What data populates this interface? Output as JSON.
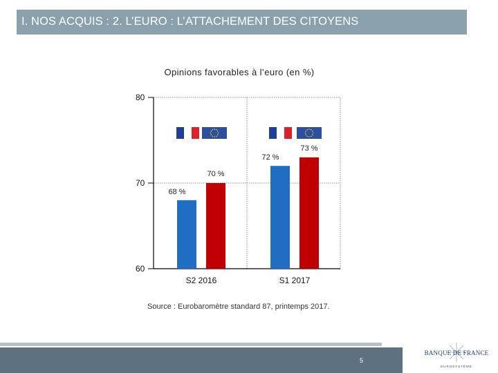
{
  "header": {
    "title": "I. NOS ACQUIS : 2. L’EURO : L’ATTACHEMENT DES CITOYENS"
  },
  "chart_data": {
    "type": "bar",
    "title": "Opinions favorables à l’euro (en %)",
    "categories": [
      "S2 2016",
      "S1 2017"
    ],
    "series": [
      {
        "name": "France",
        "color": "#1f6ec4",
        "values": [
          68,
          72
        ],
        "labels": [
          "68 %",
          "72 %"
        ]
      },
      {
        "name": "Zone euro",
        "color": "#c00000",
        "values": [
          70,
          73
        ],
        "labels": [
          "70 %",
          "73 %"
        ]
      }
    ],
    "ylim": [
      60,
      80
    ],
    "yticks": [
      60,
      70,
      80
    ],
    "xlabel": "",
    "ylabel": ""
  },
  "source": "Source : Eurobaromètre standard 87, printemps 2017.",
  "footer": {
    "page_number": "5",
    "logo_text": "BANQUE DE FRANCE",
    "logo_subtext": "EUROSYSTÈME"
  },
  "colors": {
    "title_bar": "#8aa1ad",
    "footer_bar": "#5d7180",
    "france_blue": "#1f6ec4",
    "euro_red": "#c00000",
    "flag_eu": "#2d4fa0"
  }
}
